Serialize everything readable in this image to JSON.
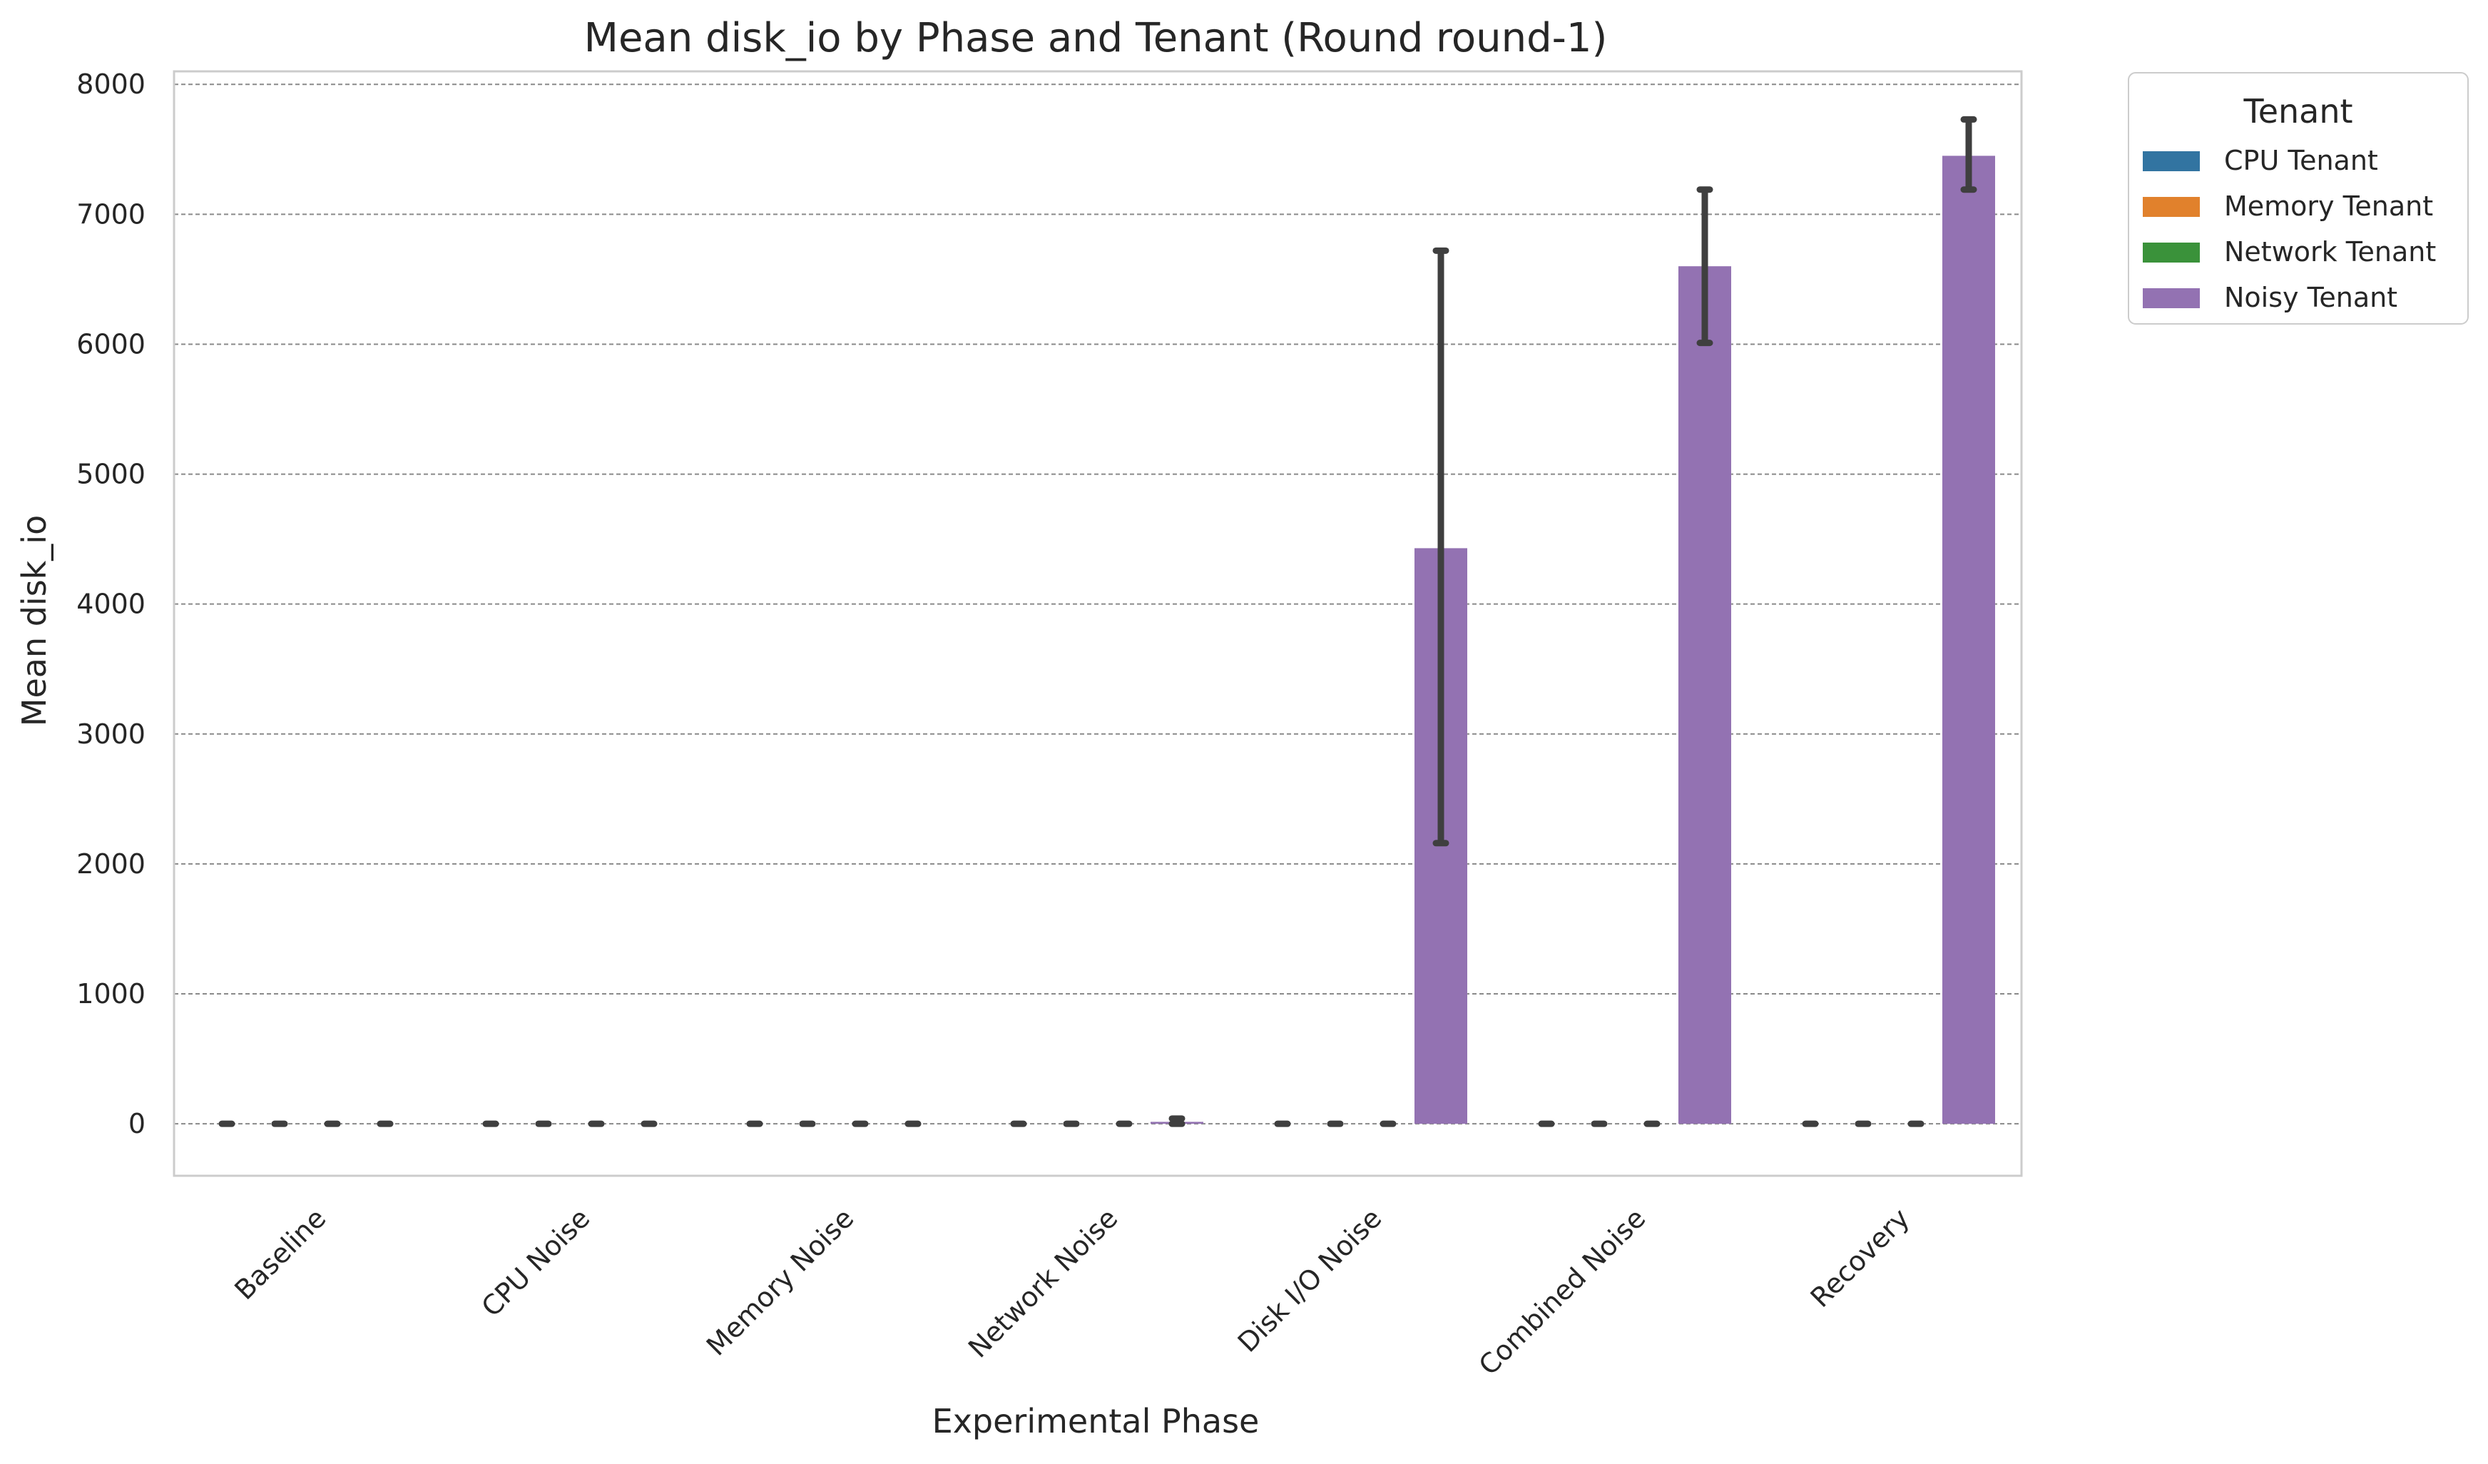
{
  "chart_data": {
    "type": "bar",
    "title": "Mean disk_io by Phase and Tenant (Round round-1)",
    "xlabel": "Experimental Phase",
    "ylabel": "Mean disk_io",
    "ylim": [
      -400,
      8100
    ],
    "yticks": [
      0,
      1000,
      2000,
      3000,
      4000,
      5000,
      6000,
      7000,
      8000
    ],
    "grid": true,
    "legend": {
      "title": "Tenant",
      "placement": "outside-top-right"
    },
    "categories": [
      "Baseline",
      "CPU Noise",
      "Memory Noise",
      "Network Noise",
      "Disk I/O Noise",
      "Combined Noise",
      "Recovery"
    ],
    "series": [
      {
        "name": "CPU Tenant",
        "color": "#3274a1",
        "values": [
          0,
          0,
          0,
          0,
          0,
          0,
          0
        ],
        "err_low": [
          0,
          0,
          0,
          0,
          0,
          0,
          0
        ],
        "err_high": [
          0,
          0,
          0,
          0,
          0,
          0,
          0
        ]
      },
      {
        "name": "Memory Tenant",
        "color": "#e1812c",
        "values": [
          0,
          0,
          0,
          0,
          0,
          0,
          0
        ],
        "err_low": [
          0,
          0,
          0,
          0,
          0,
          0,
          0
        ],
        "err_high": [
          0,
          0,
          0,
          0,
          0,
          0,
          0
        ]
      },
      {
        "name": "Network Tenant",
        "color": "#3a923a",
        "values": [
          0,
          0,
          0,
          0,
          0,
          0,
          0
        ],
        "err_low": [
          0,
          0,
          0,
          0,
          0,
          0,
          0
        ],
        "err_high": [
          0,
          0,
          0,
          0,
          0,
          0,
          0
        ]
      },
      {
        "name": "Noisy Tenant",
        "color": "#9372b2",
        "values": [
          0,
          0,
          0,
          15,
          4430,
          6600,
          7450
        ],
        "err_low": [
          0,
          0,
          0,
          0,
          2160,
          6010,
          7190
        ],
        "err_high": [
          0,
          0,
          0,
          40,
          6720,
          7190,
          7730
        ]
      }
    ]
  }
}
